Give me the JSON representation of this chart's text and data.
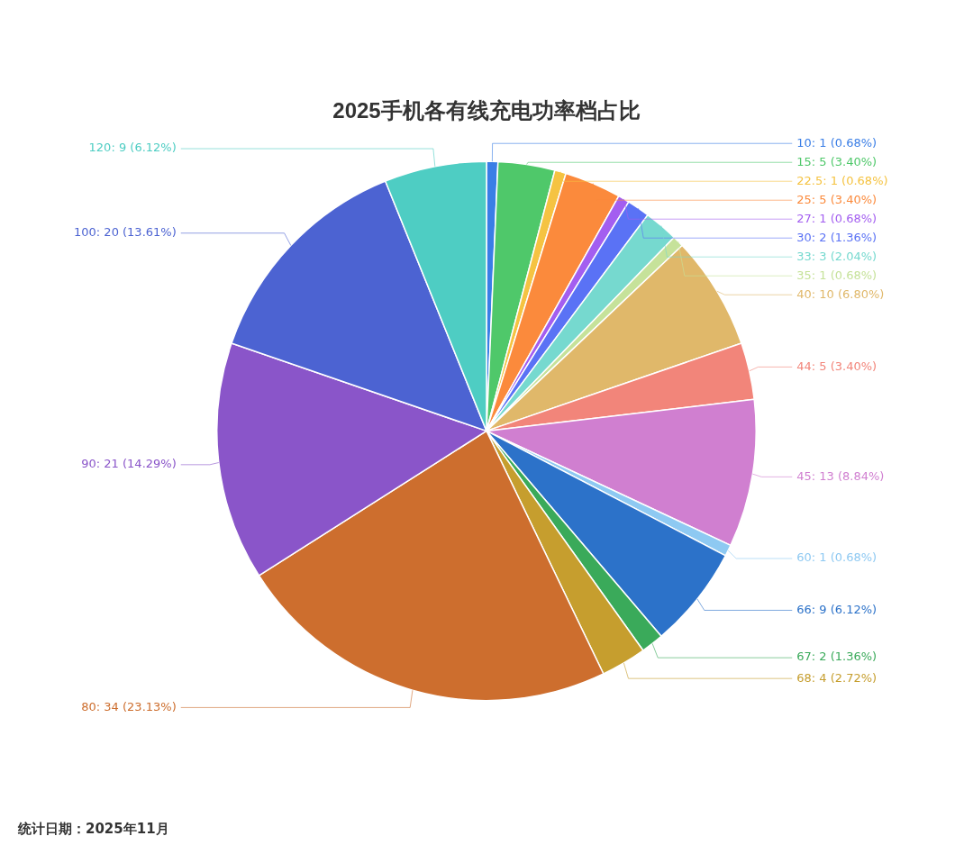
{
  "chart_data": {
    "type": "pie",
    "title": "2025手机各有线充电功率档占比",
    "categories": [
      "10",
      "15",
      "22.5",
      "25",
      "27",
      "30",
      "33",
      "35",
      "40",
      "44",
      "45",
      "60",
      "66",
      "67",
      "68",
      "80",
      "90",
      "100",
      "120"
    ],
    "values": [
      1,
      5,
      1,
      5,
      1,
      2,
      3,
      1,
      10,
      5,
      13,
      1,
      9,
      2,
      4,
      34,
      21,
      20,
      9
    ],
    "colors": [
      "#3a7ee6",
      "#4fc86a",
      "#f5c342",
      "#fb8a3c",
      "#a35ef0",
      "#5a72f5",
      "#76d9cf",
      "#c6e29a",
      "#e0b86a",
      "#f2857a",
      "#d07fd0",
      "#8ec9f2",
      "#2c72c9",
      "#3aaa5a",
      "#c69e2e",
      "#cd6e2e",
      "#8a55c9",
      "#4c63d2",
      "#4ecdc3"
    ],
    "value_labels": [
      "1 (0.68%)",
      "5 (3.40%)",
      "1 (0.68%)",
      "5 (3.40%)",
      "1 (0.68%)",
      "2 (1.36%)",
      "3 (2.04%)",
      "1 (0.68%)",
      "10 (6.80%)",
      "5 (3.40%)",
      "13 (8.84%)",
      "1 (0.68%)",
      "9 (6.12%)",
      "2 (1.36%)",
      "4 (2.72%)",
      "34 (23.13%)",
      "21 (14.29%)",
      "20 (13.61%)",
      "9 (6.12%)"
    ],
    "legend": false,
    "annotations": [
      "统计日期：2025年11月"
    ]
  }
}
